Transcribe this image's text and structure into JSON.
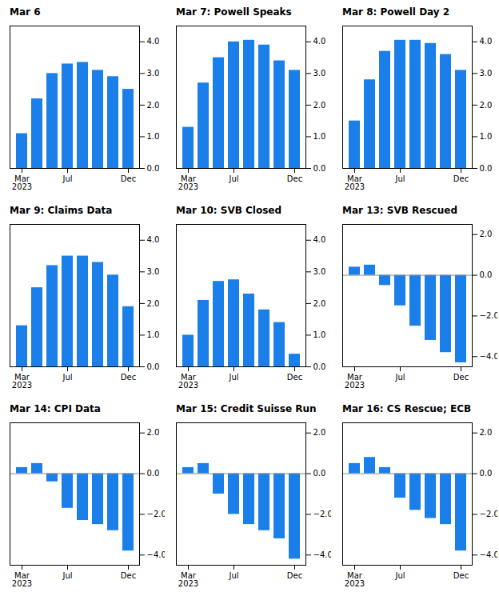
{
  "chart_data": [
    {
      "type": "bar",
      "title": "Mar 6",
      "categories": [
        "Mar\n2023",
        null,
        null,
        "Jul",
        null,
        null,
        null,
        "Dec"
      ],
      "values": [
        1.1,
        2.2,
        3.0,
        3.3,
        3.35,
        3.1,
        2.9,
        2.5
      ],
      "color": "#1a7fe8",
      "ylim": [
        0,
        4.5
      ],
      "yticks": [
        0,
        1,
        2,
        3,
        4
      ],
      "grid": false
    },
    {
      "type": "bar",
      "title": "Mar 7: Powell Speaks",
      "categories": [
        "Mar\n2023",
        null,
        null,
        "Jul",
        null,
        null,
        null,
        "Dec"
      ],
      "values": [
        1.3,
        2.7,
        3.5,
        4.0,
        4.05,
        3.9,
        3.4,
        3.1
      ],
      "color": "#1a7fe8",
      "ylim": [
        0,
        4.5
      ],
      "yticks": [
        0,
        1,
        2,
        3,
        4
      ],
      "grid": false
    },
    {
      "type": "bar",
      "title": "Mar 8: Powell Day 2",
      "categories": [
        "Mar\n2023",
        null,
        null,
        "Jul",
        null,
        null,
        null,
        "Dec"
      ],
      "values": [
        1.5,
        2.8,
        3.7,
        4.05,
        4.05,
        3.95,
        3.6,
        3.1
      ],
      "color": "#1a7fe8",
      "ylim": [
        0,
        4.5
      ],
      "yticks": [
        0,
        1,
        2,
        3,
        4
      ],
      "grid": false
    },
    {
      "type": "bar",
      "title": "Mar 9: Claims Data",
      "categories": [
        "Mar\n2023",
        null,
        null,
        "Jul",
        null,
        null,
        null,
        "Dec"
      ],
      "values": [
        1.3,
        2.5,
        3.2,
        3.5,
        3.5,
        3.3,
        2.9,
        1.9
      ],
      "color": "#1a7fe8",
      "ylim": [
        0,
        4.5
      ],
      "yticks": [
        0,
        1,
        2,
        3,
        4
      ],
      "grid": false
    },
    {
      "type": "bar",
      "title": "Mar 10: SVB Closed",
      "categories": [
        "Mar\n2023",
        null,
        null,
        "Jul",
        null,
        null,
        null,
        "Dec"
      ],
      "values": [
        1.0,
        2.1,
        2.7,
        2.75,
        2.3,
        1.8,
        1.4,
        0.4
      ],
      "color": "#1a7fe8",
      "ylim": [
        0,
        4.5
      ],
      "yticks": [
        0,
        1,
        2,
        3,
        4
      ],
      "grid": false
    },
    {
      "type": "bar",
      "title": "Mar 13: SVB Rescued",
      "categories": [
        "Mar\n2023",
        null,
        null,
        "Jul",
        null,
        null,
        null,
        "Dec"
      ],
      "values": [
        0.4,
        0.5,
        -0.5,
        -1.5,
        -2.5,
        -3.2,
        -3.8,
        -4.3
      ],
      "color": "#1a7fe8",
      "ylim": [
        -4.5,
        2.5
      ],
      "yticks": [
        -4,
        -2,
        0,
        2
      ],
      "grid": false
    },
    {
      "type": "bar",
      "title": "Mar 14: CPI Data",
      "categories": [
        "Mar\n2023",
        null,
        null,
        "Jul",
        null,
        null,
        null,
        "Dec"
      ],
      "values": [
        0.3,
        0.5,
        -0.4,
        -1.7,
        -2.3,
        -2.5,
        -2.8,
        -3.8
      ],
      "color": "#1a7fe8",
      "ylim": [
        -4.5,
        2.5
      ],
      "yticks": [
        -4,
        -2,
        0,
        2
      ],
      "grid": false
    },
    {
      "type": "bar",
      "title": "Mar 15: Credit Suisse Run",
      "categories": [
        "Mar\n2023",
        null,
        null,
        "Jul",
        null,
        null,
        null,
        "Dec"
      ],
      "values": [
        0.3,
        0.5,
        -1.0,
        -2.0,
        -2.5,
        -2.8,
        -3.2,
        -4.2
      ],
      "color": "#1a7fe8",
      "ylim": [
        -4.5,
        2.5
      ],
      "yticks": [
        -4,
        -2,
        0,
        2
      ],
      "grid": false
    },
    {
      "type": "bar",
      "title": "Mar 16: CS Rescue; ECB",
      "categories": [
        "Mar\n2023",
        null,
        null,
        "Jul",
        null,
        null,
        null,
        "Dec"
      ],
      "values": [
        0.5,
        0.8,
        0.3,
        -1.2,
        -1.8,
        -2.2,
        -2.5,
        -3.8
      ],
      "color": "#1a7fe8",
      "ylim": [
        -4.5,
        2.5
      ],
      "yticks": [
        -4,
        -2,
        0,
        2
      ],
      "grid": false
    }
  ]
}
